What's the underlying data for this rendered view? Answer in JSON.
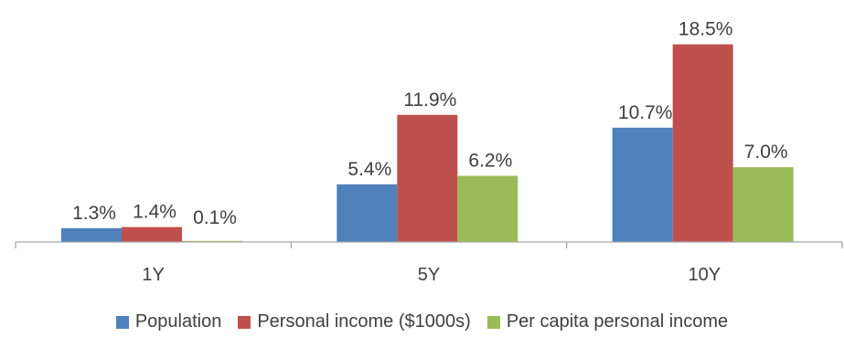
{
  "chart_data": {
    "type": "bar",
    "categories": [
      "1Y",
      "5Y",
      "10Y"
    ],
    "series": [
      {
        "name": "Population",
        "values": [
          1.3,
          5.4,
          10.7
        ],
        "labels": [
          "1.3%",
          "5.4%",
          "10.7%"
        ],
        "color": "#4f81bd"
      },
      {
        "name": "Personal income ($1000s)",
        "values": [
          1.4,
          11.9,
          18.5
        ],
        "labels": [
          "1.4%",
          "11.9%",
          "18.5%"
        ],
        "color": "#c0504d"
      },
      {
        "name": "Per capita personal income",
        "values": [
          0.1,
          6.2,
          7.0
        ],
        "labels": [
          "0.1%",
          "6.2%",
          "7.0%"
        ],
        "color": "#9bbb59"
      }
    ],
    "title": "",
    "xlabel": "",
    "ylabel": "",
    "ylim": [
      0,
      20
    ],
    "grid": false,
    "legend_position": "bottom",
    "axis_color": "#a6a6a6"
  }
}
